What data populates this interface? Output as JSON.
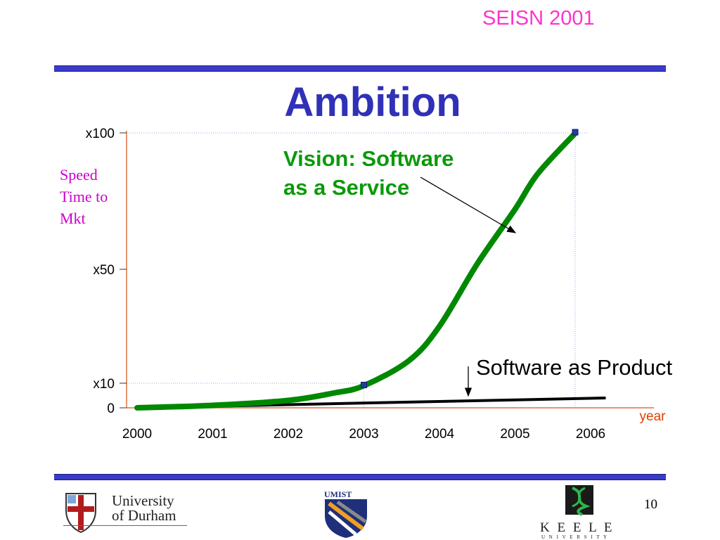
{
  "header": {
    "conference": "SEISN 2001"
  },
  "slide": {
    "title": "Ambition",
    "page_number": "10"
  },
  "chart_data": {
    "type": "line",
    "title": "",
    "xlabel": "year",
    "ylabel": [
      "Speed",
      "Time to",
      "Mkt"
    ],
    "x_ticks": [
      "2000",
      "2001",
      "2002",
      "2003",
      "2004",
      "2005",
      "2006"
    ],
    "y_ticks": [
      {
        "label": "0",
        "value": 0
      },
      {
        "label": "x10",
        "value": 10
      },
      {
        "label": "x50",
        "value": 50
      },
      {
        "label": "x100",
        "value": 100
      }
    ],
    "ylim": [
      0,
      100
    ],
    "grid": "dotted reference lines at x10 and x100, vertical guides at 2003 and 2006",
    "series": [
      {
        "name": "Vision: Software as a Service",
        "color": "#008800",
        "x": [
          2000,
          2001,
          2002,
          2002.6,
          2003,
          2003.6,
          2004,
          2004.5,
          2005,
          2005.3,
          2005.8
        ],
        "y": [
          0,
          1,
          3,
          6,
          9,
          18,
          30,
          52,
          72,
          85,
          100
        ]
      },
      {
        "name": "Software as Product",
        "color": "#000000",
        "x": [
          2000,
          2006.2
        ],
        "y": [
          0,
          4
        ]
      }
    ],
    "markers": [
      {
        "x": 2003,
        "y": 9,
        "color": "#1f3fa0"
      },
      {
        "x": 2006,
        "y": 100,
        "color": "#1f3fa0"
      }
    ],
    "annotations": [
      {
        "text": "Vision: Software as a Service"
      },
      {
        "text": "Software as Product"
      }
    ]
  },
  "logos": {
    "durham": [
      "University",
      "of Durham"
    ],
    "umist": "UMIST",
    "keele": [
      "K E E L E",
      "U N I V E R S I T Y"
    ]
  }
}
